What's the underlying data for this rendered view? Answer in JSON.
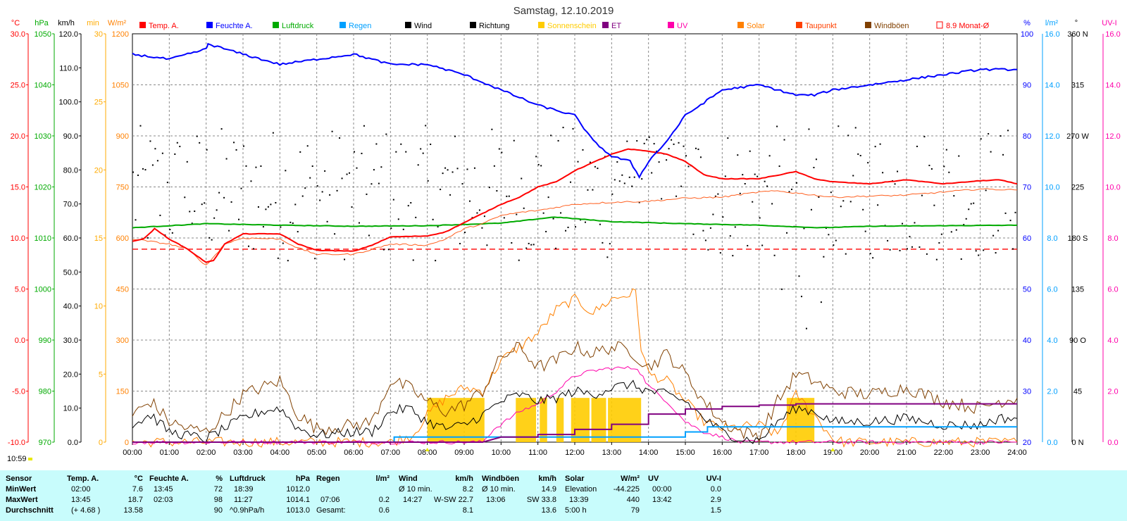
{
  "title": "Samstag, 12.10.2019",
  "legend": [
    {
      "label": "Temp. A.",
      "color": "#ff0000"
    },
    {
      "label": "Feuchte A.",
      "color": "#0000ff"
    },
    {
      "label": "Luftdruck",
      "color": "#00aa00"
    },
    {
      "label": "Regen",
      "color": "#00a0ff"
    },
    {
      "label": "Wind",
      "color": "#000000"
    },
    {
      "label": "Richtung",
      "color": "#000000"
    },
    {
      "label": "Sonnenschein",
      "color": "#ffcc00"
    },
    {
      "label": "ET",
      "color": "#800080"
    },
    {
      "label": "UV",
      "color": "#ff00aa"
    },
    {
      "label": "Solar",
      "color": "#ff8000"
    },
    {
      "label": "Taupunkt",
      "color": "#ff4000"
    },
    {
      "label": "Windböen",
      "color": "#804000"
    },
    {
      "label": "8.9 Monat-Ø",
      "color": "#ff0000"
    }
  ],
  "axes": {
    "temp": {
      "unit": "°C",
      "color": "#ff0000",
      "ticks": [
        "30.0",
        "25.0",
        "20.0",
        "15.0",
        "10.0",
        "5.0",
        "0.0",
        "-5.0",
        "-10.0"
      ]
    },
    "pressure": {
      "unit": "hPa",
      "color": "#00aa00",
      "ticks": [
        "1050",
        "1040",
        "1030",
        "1020",
        "1010",
        "1000",
        "990",
        "980",
        "970"
      ]
    },
    "wind": {
      "unit": "km/h",
      "color": "#000000",
      "ticks": [
        "120.0",
        "110.0",
        "100.0",
        "90.0",
        "80.0",
        "70.0",
        "60.0",
        "50.0",
        "40.0",
        "30.0",
        "20.0",
        "10.0",
        "0.0"
      ]
    },
    "sunshine": {
      "unit": "min",
      "color": "#ffaa00",
      "ticks": [
        "30",
        "25",
        "20",
        "15",
        "10",
        "5",
        "0"
      ]
    },
    "solar": {
      "unit": "W/m²",
      "color": "#ff8000",
      "ticks": [
        "1200",
        "1050",
        "900",
        "750",
        "600",
        "450",
        "300",
        "150",
        "0"
      ]
    },
    "humidity": {
      "unit": "%",
      "color": "#0000ff",
      "ticks": [
        "100",
        "90",
        "80",
        "70",
        "60",
        "50",
        "40",
        "30",
        "20"
      ]
    },
    "rain": {
      "unit": "l/m²",
      "color": "#00a0ff",
      "ticks": [
        "16.0",
        "14.0",
        "12.0",
        "10.0",
        "8.0",
        "6.0",
        "4.0",
        "2.0",
        "0.0"
      ]
    },
    "direction": {
      "unit": "°",
      "color": "#000000",
      "ticks": [
        "360 N",
        "315",
        "270 W",
        "225",
        "180 S",
        "135",
        "90 O",
        "45",
        "0 N"
      ]
    },
    "uv": {
      "unit": "UV-I",
      "color": "#ff00aa",
      "ticks": [
        "16.0",
        "14.0",
        "12.0",
        "10.0",
        "8.0",
        "6.0",
        "4.0",
        "2.0",
        "0.0"
      ]
    },
    "time_ticks": [
      "00:00",
      "01:00",
      "02:00",
      "03:00",
      "04:00",
      "05:00",
      "06:00",
      "07:00",
      "08:00",
      "09:00",
      "10:00",
      "11:00",
      "12:00",
      "13:00",
      "14:00",
      "15:00",
      "16:00",
      "17:00",
      "18:00",
      "19:00",
      "20:00",
      "21:00",
      "22:00",
      "23:00",
      "24:00"
    ]
  },
  "current_time": "10:59",
  "chart_data": {
    "type": "line",
    "title": "Samstag, 12.10.2019",
    "x_unit": "hour",
    "monthly_avg_temp": 8.9,
    "series": [
      {
        "name": "Temp. A.",
        "unit": "°C",
        "color": "#ff0000",
        "points": [
          [
            0,
            9.7
          ],
          [
            0.3,
            9.9
          ],
          [
            0.6,
            10.9
          ],
          [
            1,
            9.9
          ],
          [
            1.5,
            8.9
          ],
          [
            2,
            7.6
          ],
          [
            2.2,
            7.8
          ],
          [
            2.5,
            9.4
          ],
          [
            3,
            10.4
          ],
          [
            4,
            10.4
          ],
          [
            4.5,
            9.4
          ],
          [
            5,
            8.8
          ],
          [
            6,
            8.7
          ],
          [
            6.5,
            9.3
          ],
          [
            7,
            10.1
          ],
          [
            8,
            10.2
          ],
          [
            8.5,
            10.6
          ],
          [
            9,
            11.5
          ],
          [
            9.5,
            12.4
          ],
          [
            10,
            13.3
          ],
          [
            10.5,
            14.0
          ],
          [
            11,
            15.0
          ],
          [
            11.5,
            15.5
          ],
          [
            12,
            16.6
          ],
          [
            12.5,
            17.4
          ],
          [
            13,
            18.2
          ],
          [
            13.45,
            18.7
          ],
          [
            14,
            18.5
          ],
          [
            14.5,
            18.2
          ],
          [
            15,
            17.5
          ],
          [
            15.5,
            16.2
          ],
          [
            16,
            15.8
          ],
          [
            17,
            15.8
          ],
          [
            18,
            16.5
          ],
          [
            18.5,
            15.8
          ],
          [
            19,
            15.5
          ],
          [
            20,
            15.3
          ],
          [
            21,
            15.7
          ],
          [
            22,
            15.3
          ],
          [
            23,
            15.6
          ],
          [
            23.5,
            15.7
          ],
          [
            24,
            15.3
          ]
        ]
      },
      {
        "name": "Taupunkt",
        "unit": "°C",
        "color": "#ff6020",
        "points": [
          [
            0,
            9.9
          ],
          [
            1,
            9.4
          ],
          [
            1.5,
            8.9
          ],
          [
            2,
            7.3
          ],
          [
            2.5,
            9.4
          ],
          [
            3,
            10.0
          ],
          [
            4,
            9.9
          ],
          [
            4.5,
            9.0
          ],
          [
            5,
            8.4
          ],
          [
            6,
            8.4
          ],
          [
            6.5,
            8.9
          ],
          [
            7,
            9.4
          ],
          [
            8,
            9.3
          ],
          [
            8.5,
            9.9
          ],
          [
            9,
            10.9
          ],
          [
            9.5,
            11.4
          ],
          [
            10,
            12.2
          ],
          [
            10.5,
            12.5
          ],
          [
            11,
            12.7
          ],
          [
            12,
            13.3
          ],
          [
            13,
            13.5
          ],
          [
            14,
            13.6
          ],
          [
            15,
            13.9
          ],
          [
            16,
            14.0
          ],
          [
            17,
            14.5
          ],
          [
            17.5,
            14.6
          ],
          [
            18,
            14.4
          ],
          [
            19,
            14.0
          ],
          [
            20,
            14.1
          ],
          [
            21,
            14.2
          ],
          [
            22,
            14.5
          ],
          [
            23,
            14.8
          ],
          [
            24,
            14.7
          ]
        ]
      },
      {
        "name": "Luftdruck",
        "unit": "hPa",
        "color": "#00aa00",
        "points": [
          [
            0,
            1012.0
          ],
          [
            2,
            1012.8
          ],
          [
            4,
            1012.5
          ],
          [
            6,
            1012.3
          ],
          [
            8,
            1012.4
          ],
          [
            10,
            1012.9
          ],
          [
            11.45,
            1014.1
          ],
          [
            13,
            1013.2
          ],
          [
            15,
            1012.8
          ],
          [
            17,
            1012.5
          ],
          [
            18.65,
            1012.0
          ],
          [
            20,
            1012.3
          ],
          [
            22,
            1012.4
          ],
          [
            24,
            1012.5
          ]
        ]
      },
      {
        "name": "Feuchte A.",
        "unit": "%",
        "color": "#0000ff",
        "points": [
          [
            0,
            96
          ],
          [
            1,
            95
          ],
          [
            2,
            97
          ],
          [
            2.05,
            98
          ],
          [
            3,
            96
          ],
          [
            4,
            94
          ],
          [
            5,
            95
          ],
          [
            6,
            96
          ],
          [
            7,
            94
          ],
          [
            8,
            94
          ],
          [
            9,
            92
          ],
          [
            10,
            89
          ],
          [
            11,
            86
          ],
          [
            12,
            84
          ],
          [
            12.5,
            79
          ],
          [
            13,
            76
          ],
          [
            13.5,
            75
          ],
          [
            13.75,
            72
          ],
          [
            14,
            75
          ],
          [
            14.5,
            79
          ],
          [
            15,
            84
          ],
          [
            16,
            89
          ],
          [
            17,
            90
          ],
          [
            18,
            88
          ],
          [
            18.5,
            88
          ],
          [
            19,
            89
          ],
          [
            20,
            90
          ],
          [
            21,
            91
          ],
          [
            22,
            92
          ],
          [
            23,
            93
          ],
          [
            24,
            93
          ]
        ]
      },
      {
        "name": "Wind",
        "unit": "km/h",
        "color": "#000000",
        "summary": {
          "min_avg10": 8.2,
          "max_avg10": 22.7,
          "max_avg10_time": "14:27",
          "max_avg10_dir": "W-SW",
          "mean": 8.1
        }
      },
      {
        "name": "Windböen",
        "unit": "km/h",
        "color": "#804000",
        "summary": {
          "min_avg10": 14.9,
          "max": 33.8,
          "max_time": "13:06",
          "max_dir": "SW",
          "mean": 13.6
        }
      },
      {
        "name": "Solar",
        "unit": "W/m²",
        "color": "#ff8000",
        "summary": {
          "max": 440,
          "max_time": "13:39",
          "mean": 79
        }
      },
      {
        "name": "UV",
        "unit": "UV-I",
        "color": "#ff00aa",
        "summary": {
          "max": 2.9,
          "max_time": "13:42",
          "mean": 1.5
        }
      },
      {
        "name": "Regen",
        "unit": "l/m²",
        "color": "#00a0ff",
        "summary": {
          "max": 0.2,
          "max_time": "07:06",
          "total": 0.6
        }
      },
      {
        "name": "Sonnenschein",
        "unit": "min",
        "color": "#ffcc00",
        "summary": {
          "total": "5:00 h"
        }
      }
    ]
  },
  "stats": {
    "rows": [
      "Sensor",
      "MinWert",
      "MaxWert",
      "Durchschnitt"
    ],
    "temp": {
      "head": "Temp. A.",
      "unit": "°C",
      "min_time": "02:00",
      "min": "7.6",
      "max_time": "13:45",
      "max": "18.7",
      "avg_label": "(+ 4.68 )",
      "avg": "13.58"
    },
    "humidity": {
      "head": "Feuchte A.",
      "unit": "%",
      "min_time": "13:45",
      "min": "72",
      "max_time": "02:03",
      "max": "98",
      "avg": "90"
    },
    "pressure": {
      "head": "Luftdruck",
      "unit": "hPa",
      "min_time": "18:39",
      "min": "1012.0",
      "max_time": "11:27",
      "max": "1014.1",
      "avg_label": "^0.9hPa/h",
      "avg": "1013.0"
    },
    "rain": {
      "head": "Regen",
      "unit": "l/m²",
      "max_time": "07:06",
      "max": "0.2",
      "avg_label": "Gesamt:",
      "avg": "0.6"
    },
    "wind": {
      "head": "Wind",
      "unit": "km/h",
      "min_label": "Ø 10 min.",
      "min": "8.2",
      "max_time": "14:27",
      "max": "W-SW 22.7",
      "avg": "8.1"
    },
    "gust": {
      "head": "Windböen",
      "unit": "km/h",
      "min_label": "Ø 10 min.",
      "min": "14.9",
      "max_time": "13:06",
      "max": "SW 33.8",
      "avg": "13.6"
    },
    "solar": {
      "head": "Solar",
      "unit": "W/m²",
      "min_label": "Elevation",
      "min": "-44.225",
      "max_time": "13:39",
      "max": "440",
      "avg_label": "5:00 h",
      "avg": "79"
    },
    "uv": {
      "head": "UV",
      "unit": "UV-I",
      "min_time": "00:00",
      "min": "0.0",
      "max_time": "13:42",
      "max": "2.9",
      "avg": "1.5"
    }
  }
}
